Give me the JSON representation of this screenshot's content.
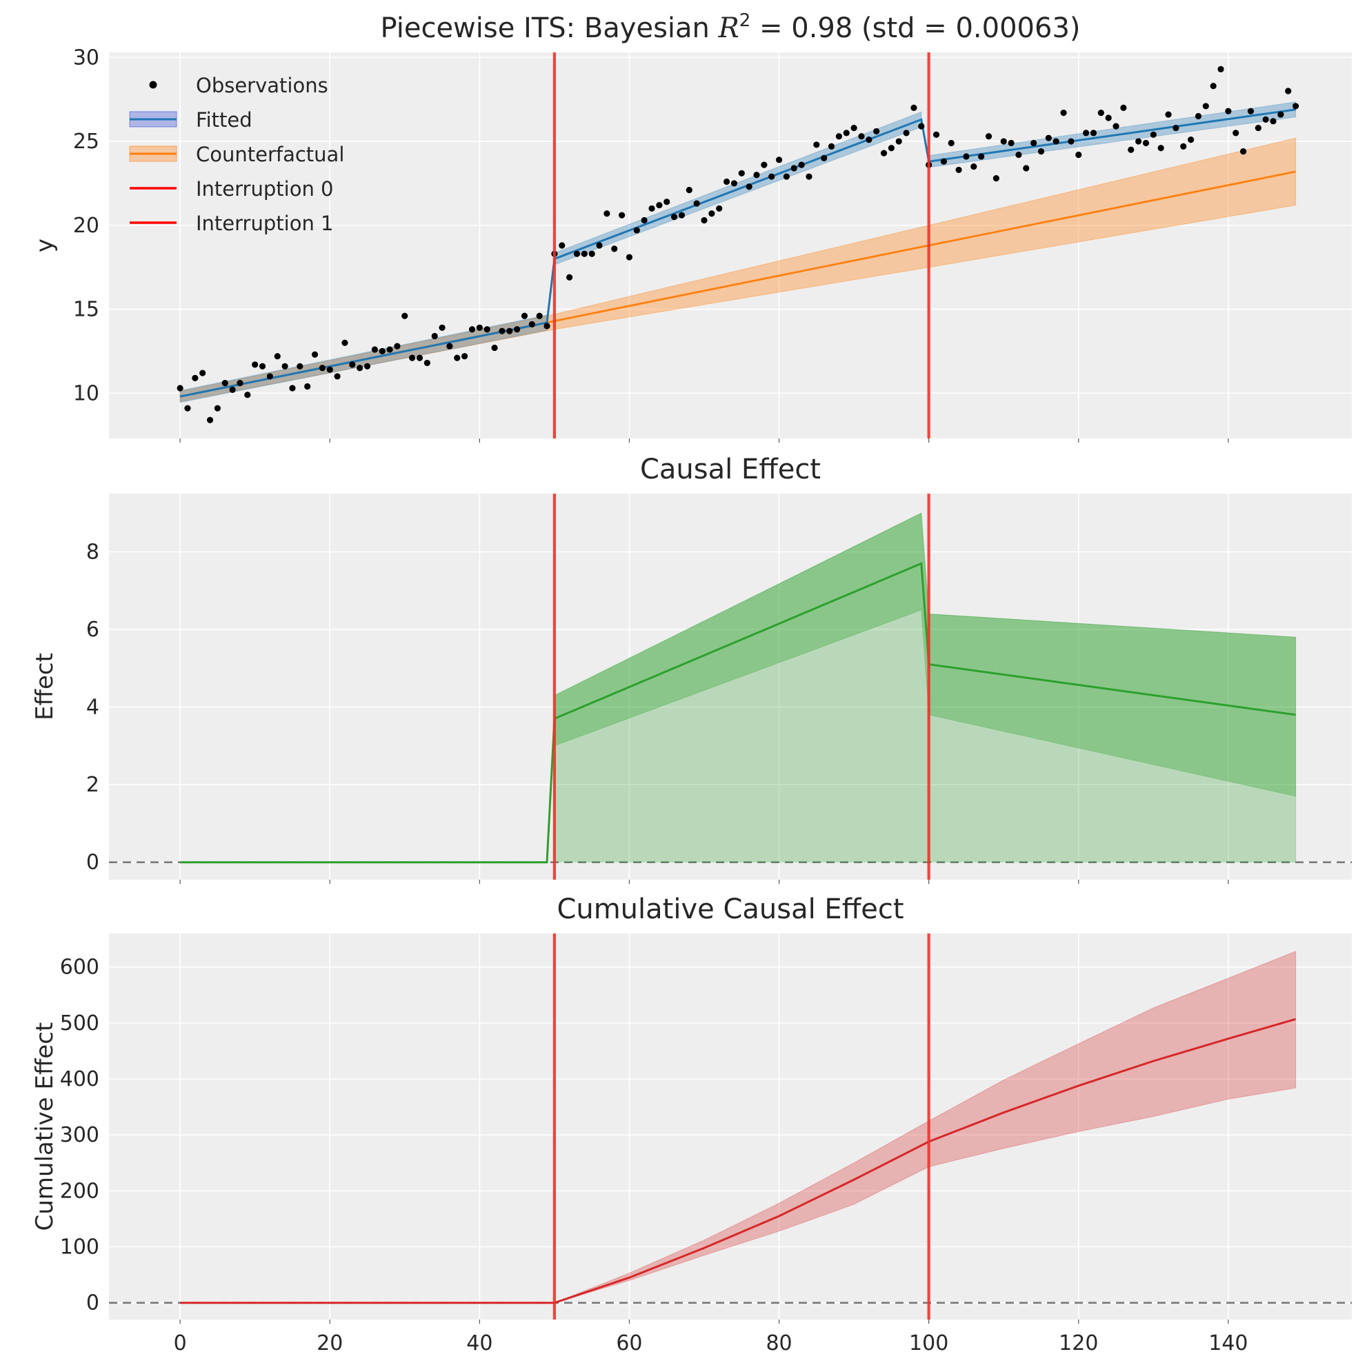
{
  "chart_data": [
    {
      "type": "line",
      "panel": "top",
      "title": "Piecewise ITS: Bayesian R² = 0.98 (std = 0.00063)",
      "title_parts": {
        "prefix": "Piecewise ITS: Bayesian ",
        "symbol": "R",
        "superscript": "2",
        "suffix": " = 0.98 (std = 0.00063)"
      },
      "xlabel": "",
      "ylabel": "y",
      "xlim": [
        -9.5,
        156.5
      ],
      "ylim": [
        7.3,
        30.3
      ],
      "yticks": [
        10,
        15,
        20,
        25,
        30
      ],
      "xticks": [
        0,
        20,
        40,
        60,
        80,
        100,
        120,
        140
      ],
      "show_xtick_labels": false,
      "grid": true,
      "legend_placement": "upper-left",
      "legend": [
        {
          "label": "Observations",
          "kind": "dot",
          "color": "#000000"
        },
        {
          "label": "Fitted",
          "kind": "band-line",
          "color": "#1f77b4",
          "band_color": "#3b4bdb"
        },
        {
          "label": "Counterfactual",
          "kind": "band-line",
          "color": "#ff7f0e",
          "band_color": "#ff7f0e"
        },
        {
          "label": "Interruption 0",
          "kind": "line",
          "color": "#ff0000"
        },
        {
          "label": "Interruption 1",
          "kind": "line",
          "color": "#ff0000"
        }
      ],
      "interruptions": [
        50,
        100
      ],
      "observations": {
        "x": [
          0,
          1,
          2,
          3,
          4,
          5,
          6,
          7,
          8,
          9,
          10,
          11,
          12,
          13,
          14,
          15,
          16,
          17,
          18,
          19,
          20,
          21,
          22,
          23,
          24,
          25,
          26,
          27,
          28,
          29,
          30,
          31,
          32,
          33,
          34,
          35,
          36,
          37,
          38,
          39,
          40,
          41,
          42,
          43,
          44,
          45,
          46,
          47,
          48,
          49,
          50,
          51,
          52,
          53,
          54,
          55,
          56,
          57,
          58,
          59,
          60,
          61,
          62,
          63,
          64,
          65,
          66,
          67,
          68,
          69,
          70,
          71,
          72,
          73,
          74,
          75,
          76,
          77,
          78,
          79,
          80,
          81,
          82,
          83,
          84,
          85,
          86,
          87,
          88,
          89,
          90,
          91,
          92,
          93,
          94,
          95,
          96,
          97,
          98,
          99,
          100,
          101,
          102,
          103,
          104,
          105,
          106,
          107,
          108,
          109,
          110,
          111,
          112,
          113,
          114,
          115,
          116,
          117,
          118,
          119,
          120,
          121,
          122,
          123,
          124,
          125,
          126,
          127,
          128,
          129,
          130,
          131,
          132,
          133,
          134,
          135,
          136,
          137,
          138,
          139,
          140,
          141,
          142,
          143,
          144,
          145,
          146,
          147,
          148,
          149
        ],
        "y": [
          10.3,
          9.1,
          10.9,
          11.2,
          8.4,
          9.1,
          10.6,
          10.2,
          10.6,
          9.9,
          11.7,
          11.6,
          11.0,
          12.2,
          11.6,
          10.3,
          11.6,
          10.4,
          12.3,
          11.5,
          11.4,
          11.0,
          13.0,
          11.7,
          11.5,
          11.6,
          12.6,
          12.5,
          12.6,
          12.8,
          14.6,
          12.1,
          12.1,
          11.8,
          13.4,
          13.9,
          12.8,
          12.1,
          12.2,
          13.8,
          13.9,
          13.8,
          12.7,
          13.7,
          13.7,
          13.8,
          14.6,
          14.1,
          14.6,
          14.0,
          18.3,
          18.8,
          16.9,
          18.3,
          18.3,
          18.3,
          18.8,
          20.7,
          18.6,
          20.6,
          18.1,
          19.7,
          20.3,
          21.0,
          21.2,
          21.4,
          20.5,
          20.6,
          22.1,
          21.3,
          20.3,
          20.7,
          21.0,
          22.6,
          22.5,
          23.1,
          22.3,
          23.0,
          23.6,
          22.9,
          23.9,
          22.9,
          23.4,
          23.6,
          22.9,
          24.8,
          24.0,
          24.7,
          25.3,
          25.5,
          25.8,
          25.3,
          25.1,
          25.6,
          24.3,
          24.6,
          25.0,
          25.5,
          27.0,
          25.9,
          23.6,
          25.4,
          23.8,
          24.9,
          23.3,
          24.1,
          23.5,
          24.1,
          25.3,
          22.8,
          25.0,
          24.9,
          24.2,
          23.4,
          24.9,
          24.4,
          25.2,
          25.0,
          26.7,
          25.0,
          24.2,
          25.5,
          25.5,
          26.7,
          26.4,
          25.9,
          27.0,
          24.5,
          25.0,
          24.9,
          25.4,
          24.6,
          26.6,
          25.8,
          24.7,
          25.1,
          26.5,
          27.1,
          28.3,
          29.3,
          26.8,
          25.5,
          24.4,
          26.8,
          25.8,
          26.3,
          26.2,
          26.6,
          28.0,
          27.1
        ]
      },
      "fitted": {
        "segments": [
          {
            "x": [
              0,
              49
            ],
            "y": [
              9.8,
              14.2
            ]
          },
          {
            "x": [
              50,
              99
            ],
            "y": [
              18.0,
              26.3
            ]
          },
          {
            "x": [
              100,
              149
            ],
            "y": [
              23.8,
              26.9
            ]
          }
        ],
        "jumps": [
          {
            "x": [
              49,
              50
            ],
            "y": [
              14.2,
              18.0
            ]
          },
          {
            "x": [
              99,
              100
            ],
            "y": [
              26.3,
              23.8
            ]
          }
        ],
        "band_halfwidth": [
          0.35,
          0.45
        ]
      },
      "counterfactual": {
        "x": [
          0,
          50,
          100,
          149
        ],
        "y": [
          9.8,
          14.3,
          18.8,
          23.2
        ],
        "lower": [
          9.5,
          13.8,
          17.5,
          21.2
        ],
        "upper": [
          10.1,
          14.7,
          20.0,
          25.2
        ]
      }
    },
    {
      "type": "line",
      "panel": "middle",
      "title": "Causal Effect",
      "xlabel": "",
      "ylabel": "Effect",
      "xlim": [
        -9.5,
        156.5
      ],
      "ylim": [
        -0.45,
        9.5
      ],
      "yticks": [
        0,
        2,
        4,
        6,
        8
      ],
      "xticks": [
        0,
        20,
        40,
        60,
        80,
        100,
        120,
        140
      ],
      "show_xtick_labels": false,
      "grid": true,
      "zero_line": 0,
      "interruptions": [
        50,
        100
      ],
      "series": [
        {
          "x": [
            0,
            49,
            50,
            99,
            100,
            149
          ],
          "y": [
            0,
            0,
            3.7,
            7.7,
            5.1,
            3.8
          ]
        }
      ],
      "bands": [
        {
          "level": "outer",
          "x": [
            50,
            99,
            100,
            149
          ],
          "lower": [
            0,
            0,
            0,
            0
          ],
          "upper": [
            4.3,
            9.0,
            6.4,
            5.8
          ]
        },
        {
          "level": "inner",
          "x": [
            50,
            99,
            100,
            149
          ],
          "lower": [
            3.0,
            6.5,
            3.8,
            1.7
          ],
          "upper": [
            4.3,
            9.0,
            6.4,
            5.8
          ]
        }
      ]
    },
    {
      "type": "line",
      "panel": "bottom",
      "title": "Cumulative Causal Effect",
      "xlabel": "",
      "ylabel": "Cumulative Effect",
      "xlim": [
        -9.5,
        156.5
      ],
      "ylim": [
        -30,
        660
      ],
      "yticks": [
        0,
        100,
        200,
        300,
        400,
        500,
        600
      ],
      "xticks": [
        0,
        20,
        40,
        60,
        80,
        100,
        120,
        140
      ],
      "show_xtick_labels": true,
      "grid": true,
      "zero_line": 0,
      "interruptions": [
        50,
        100
      ],
      "series": [
        {
          "x": [
            0,
            49,
            50,
            60,
            70,
            80,
            90,
            100,
            110,
            120,
            130,
            140,
            149
          ],
          "y": [
            0,
            0,
            0,
            45,
            98,
            155,
            220,
            288,
            340,
            388,
            432,
            472,
            507
          ]
        }
      ],
      "band": {
        "x": [
          50,
          60,
          70,
          80,
          90,
          100,
          110,
          120,
          130,
          140,
          149
        ],
        "lower": [
          0,
          40,
          85,
          128,
          176,
          243,
          276,
          306,
          333,
          364,
          384
        ],
        "upper": [
          0,
          53,
          112,
          178,
          250,
          325,
          398,
          463,
          527,
          580,
          628
        ]
      }
    }
  ]
}
